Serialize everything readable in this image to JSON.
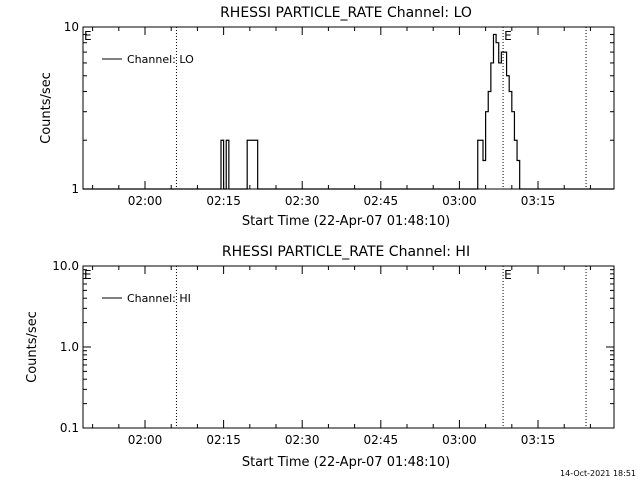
{
  "chart_data": [
    {
      "type": "line",
      "title": "RHESSI PARTICLE_RATE Channel: LO",
      "xlabel": "Start Time (22-Apr-07 01:48:10)",
      "ylabel": "Counts/sec",
      "yscale": "log",
      "ylim": [
        1,
        10
      ],
      "ytick_labels": [
        "1",
        "10"
      ],
      "xlim": [
        "01:48:10",
        "03:29:30"
      ],
      "xtick_labels": [
        "02:00",
        "02:15",
        "02:30",
        "02:45",
        "03:00",
        "03:15"
      ],
      "legend": {
        "placement": "top-left",
        "entries": [
          "Channel: LO"
        ]
      },
      "vlines": [
        "02:06:00",
        "03:08:20",
        "03:24:10"
      ],
      "e_marks": [
        "01:48:10",
        "03:08:20"
      ],
      "series": [
        {
          "name": "Channel: LO",
          "points": [
            [
              "01:48:10",
              1
            ],
            [
              "02:14:00",
              1
            ],
            [
              "02:14:30",
              2
            ],
            [
              "02:15:00",
              1
            ],
            [
              "02:15:30",
              2
            ],
            [
              "02:16:00",
              1
            ],
            [
              "02:19:00",
              1
            ],
            [
              "02:19:30",
              2
            ],
            [
              "02:21:00",
              2
            ],
            [
              "02:21:30",
              1
            ],
            [
              "03:03:00",
              1
            ],
            [
              "03:03:30",
              2
            ],
            [
              "03:04:00",
              2
            ],
            [
              "03:04:30",
              1.5
            ],
            [
              "03:05:00",
              3
            ],
            [
              "03:05:30",
              4
            ],
            [
              "03:06:00",
              6
            ],
            [
              "03:06:30",
              9
            ],
            [
              "03:07:00",
              8
            ],
            [
              "03:07:30",
              6
            ],
            [
              "03:08:00",
              7
            ],
            [
              "03:08:30",
              7
            ],
            [
              "03:09:00",
              5
            ],
            [
              "03:09:30",
              4
            ],
            [
              "03:10:00",
              3
            ],
            [
              "03:10:30",
              2
            ],
            [
              "03:11:00",
              1.5
            ],
            [
              "03:11:30",
              1
            ],
            [
              "03:29:30",
              1
            ]
          ]
        }
      ]
    },
    {
      "type": "line",
      "title": "RHESSI PARTICLE_RATE Channel: HI",
      "xlabel": "Start Time (22-Apr-07 01:48:10)",
      "ylabel": "Counts/sec",
      "yscale": "log",
      "ylim": [
        0.1,
        10
      ],
      "ytick_labels": [
        "0.1",
        "1.0",
        "10.0"
      ],
      "xlim": [
        "01:48:10",
        "03:29:30"
      ],
      "xtick_labels": [
        "02:00",
        "02:15",
        "02:30",
        "02:45",
        "03:00",
        "03:15"
      ],
      "legend": {
        "placement": "top-left",
        "entries": [
          "Channel: HI"
        ]
      },
      "vlines": [
        "02:06:00",
        "03:08:20",
        "03:24:10"
      ],
      "e_marks": [
        "01:48:10",
        "03:08:20"
      ],
      "series": [
        {
          "name": "Channel: HI",
          "points": []
        }
      ]
    }
  ],
  "e_mark_label": "E",
  "footer_timestamp": "14-Oct-2021 18:51"
}
